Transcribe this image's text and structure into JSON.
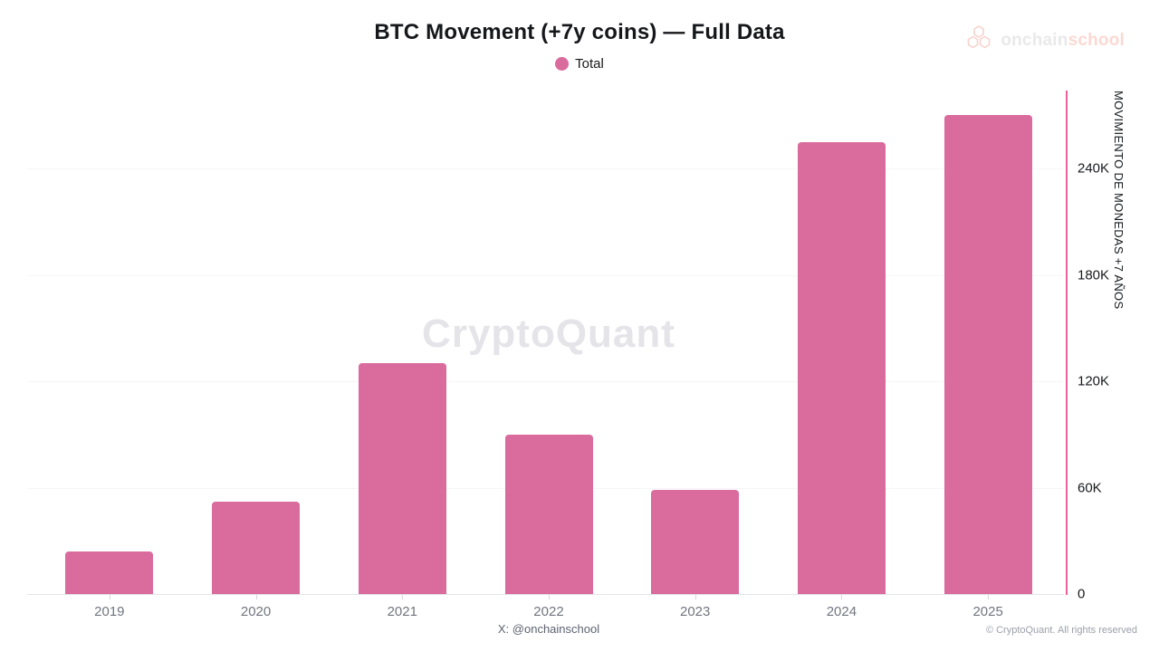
{
  "header": {
    "title": "BTC Movement (+7y coins) — Full Data",
    "legend": {
      "label": "Total",
      "dot_color": "#da6b9d"
    },
    "logo": {
      "text_primary": "onchain",
      "text_secondary": "school"
    }
  },
  "watermark": "CryptoQuant",
  "footer": {
    "caption": "X: @onchainschool",
    "copyright": "© CryptoQuant. All rights reserved"
  },
  "chart_data": {
    "type": "bar",
    "title": "BTC Movement (+7y coins) — Full Data",
    "categories": [
      "2019",
      "2020",
      "2021",
      "2022",
      "2023",
      "2024",
      "2025"
    ],
    "series": [
      {
        "name": "Total",
        "color": "#da6b9d",
        "values": [
          24000,
          52000,
          130000,
          90000,
          58500,
          255000,
          270000
        ]
      }
    ],
    "xlabel": "",
    "ylabel": "MOVIMIENTO DE MONEDAS +7 AÑOS",
    "y_ticks": [
      "0",
      "60K",
      "120K",
      "180K",
      "240K"
    ],
    "y_tick_values": [
      0,
      60000,
      120000,
      180000,
      240000
    ],
    "ylim": [
      0,
      284000
    ],
    "grid": "horizontal-faint",
    "legend_position": "top-center",
    "colors": {
      "bar": "#da6b9d",
      "axis_line": "#ec5f99",
      "gridline": "#f6f6f8",
      "baseline": "#e4e4ea"
    }
  }
}
